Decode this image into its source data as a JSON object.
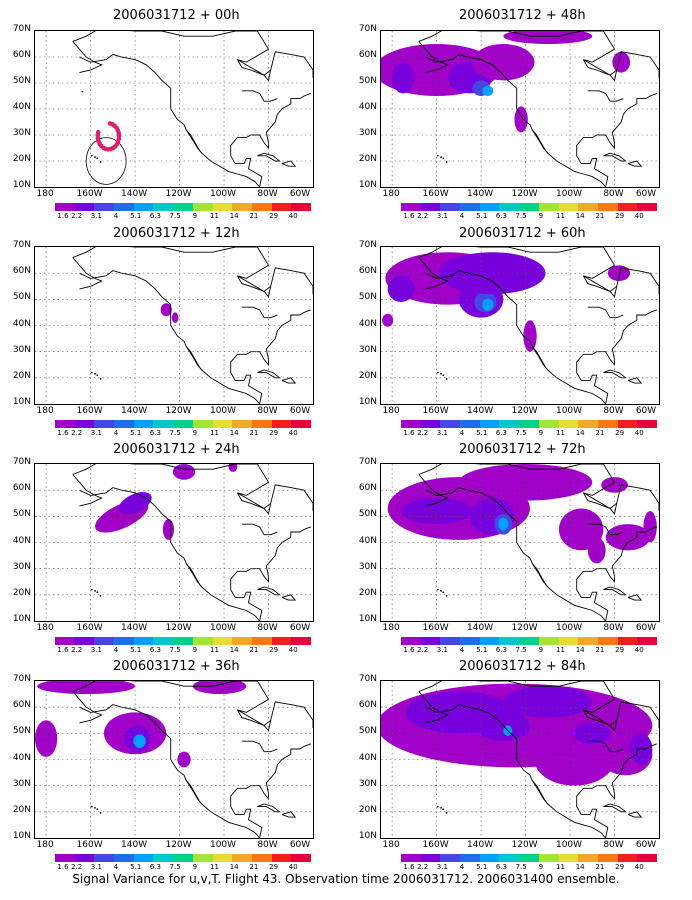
{
  "panels": [
    {
      "title": "2006031712 + 00h"
    },
    {
      "title": "2006031712 + 12h"
    },
    {
      "title": "2006031712 + 24h"
    },
    {
      "title": "2006031712 + 36h"
    },
    {
      "title": "2006031712 + 48h"
    },
    {
      "title": "2006031712 + 60h"
    },
    {
      "title": "2006031712 + 72h"
    },
    {
      "title": "2006031712 + 84h"
    }
  ],
  "axes": {
    "y_ticks": [
      "70N",
      "60N",
      "50N",
      "40N",
      "30N",
      "20N",
      "10N"
    ],
    "x_ticks": [
      "180",
      "160W",
      "140W",
      "120W",
      "100W",
      "80W",
      "60W"
    ]
  },
  "colorbar": {
    "labels": [
      "1.6",
      "2.2",
      "3.1",
      "4",
      "5.1",
      "6.3",
      "7.5",
      "9",
      "11",
      "14",
      "21",
      "29",
      "40"
    ],
    "colors": [
      "#a000c8",
      "#7800dc",
      "#4646e6",
      "#1e6eeb",
      "#00a0ff",
      "#00c8c8",
      "#00d28c",
      "#a0e632",
      "#e6dc32",
      "#f0aa28",
      "#fa7814",
      "#f01e1e",
      "#e6003c"
    ]
  },
  "footer": "Signal Variance for u,v,T. Flight 43. Observation time 2006031712. 2006031400 ensemble."
}
